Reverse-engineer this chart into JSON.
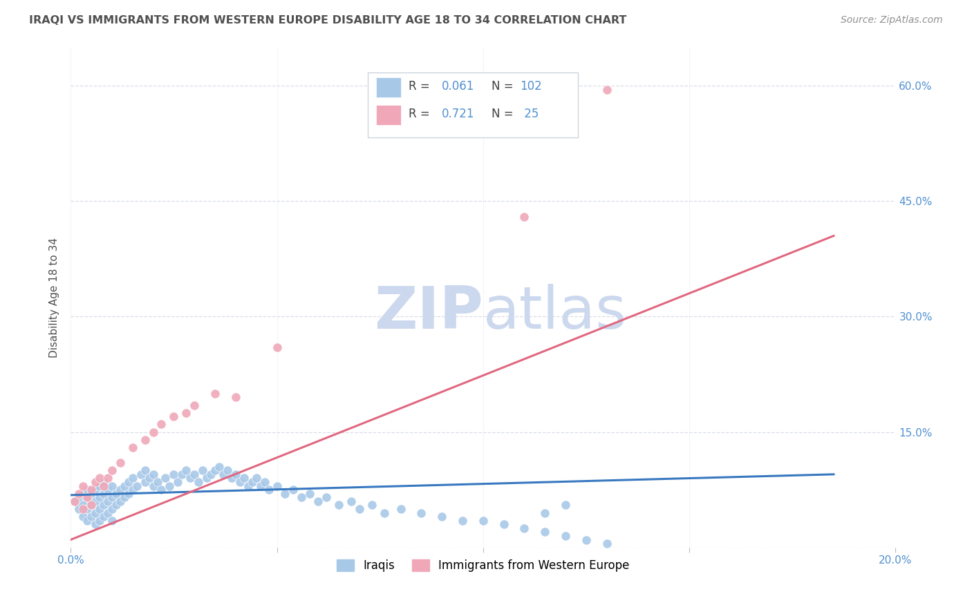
{
  "title": "IRAQI VS IMMIGRANTS FROM WESTERN EUROPE DISABILITY AGE 18 TO 34 CORRELATION CHART",
  "source": "Source: ZipAtlas.com",
  "ylabel": "Disability Age 18 to 34",
  "xlim": [
    0.0,
    0.2
  ],
  "ylim": [
    0.0,
    0.65
  ],
  "yticks": [
    0.0,
    0.15,
    0.3,
    0.45,
    0.6
  ],
  "xticks": [
    0.0,
    0.05,
    0.1,
    0.15,
    0.2
  ],
  "blue_R": "0.061",
  "blue_N": "102",
  "pink_R": "0.721",
  "pink_N": " 25",
  "blue_color": "#a8c8e8",
  "pink_color": "#f0a8b8",
  "blue_line_color": "#3878c0",
  "pink_line_color": "#e06880",
  "tick_color": "#5090d0",
  "title_color": "#505050",
  "source_color": "#909090",
  "watermark_color": "#ccd8ee",
  "grid_color": "#d8dde8",
  "legend_edge_color": "#c8d0dc",
  "blue_scatter_x": [
    0.001,
    0.002,
    0.002,
    0.003,
    0.003,
    0.003,
    0.004,
    0.004,
    0.004,
    0.004,
    0.005,
    0.005,
    0.005,
    0.006,
    0.006,
    0.006,
    0.006,
    0.007,
    0.007,
    0.007,
    0.007,
    0.008,
    0.008,
    0.008,
    0.008,
    0.009,
    0.009,
    0.009,
    0.01,
    0.01,
    0.01,
    0.01,
    0.011,
    0.011,
    0.012,
    0.012,
    0.013,
    0.013,
    0.014,
    0.014,
    0.015,
    0.015,
    0.016,
    0.017,
    0.018,
    0.018,
    0.019,
    0.02,
    0.02,
    0.021,
    0.022,
    0.023,
    0.024,
    0.025,
    0.026,
    0.027,
    0.028,
    0.029,
    0.03,
    0.031,
    0.032,
    0.033,
    0.034,
    0.035,
    0.036,
    0.037,
    0.038,
    0.039,
    0.04,
    0.041,
    0.042,
    0.043,
    0.044,
    0.045,
    0.046,
    0.047,
    0.048,
    0.05,
    0.052,
    0.054,
    0.056,
    0.058,
    0.06,
    0.062,
    0.065,
    0.068,
    0.07,
    0.073,
    0.076,
    0.08,
    0.085,
    0.09,
    0.095,
    0.1,
    0.105,
    0.11,
    0.115,
    0.12,
    0.125,
    0.13,
    0.115,
    0.12
  ],
  "blue_scatter_y": [
    0.06,
    0.05,
    0.065,
    0.04,
    0.055,
    0.07,
    0.035,
    0.05,
    0.065,
    0.075,
    0.04,
    0.055,
    0.07,
    0.03,
    0.045,
    0.06,
    0.075,
    0.035,
    0.05,
    0.065,
    0.08,
    0.04,
    0.055,
    0.07,
    0.085,
    0.045,
    0.06,
    0.075,
    0.035,
    0.05,
    0.065,
    0.08,
    0.055,
    0.07,
    0.06,
    0.075,
    0.065,
    0.08,
    0.07,
    0.085,
    0.075,
    0.09,
    0.08,
    0.095,
    0.085,
    0.1,
    0.09,
    0.08,
    0.095,
    0.085,
    0.075,
    0.09,
    0.08,
    0.095,
    0.085,
    0.095,
    0.1,
    0.09,
    0.095,
    0.085,
    0.1,
    0.09,
    0.095,
    0.1,
    0.105,
    0.095,
    0.1,
    0.09,
    0.095,
    0.085,
    0.09,
    0.08,
    0.085,
    0.09,
    0.08,
    0.085,
    0.075,
    0.08,
    0.07,
    0.075,
    0.065,
    0.07,
    0.06,
    0.065,
    0.055,
    0.06,
    0.05,
    0.055,
    0.045,
    0.05,
    0.045,
    0.04,
    0.035,
    0.035,
    0.03,
    0.025,
    0.02,
    0.015,
    0.01,
    0.005,
    0.045,
    0.055
  ],
  "pink_scatter_x": [
    0.001,
    0.002,
    0.003,
    0.003,
    0.004,
    0.005,
    0.005,
    0.006,
    0.007,
    0.008,
    0.009,
    0.01,
    0.012,
    0.015,
    0.018,
    0.02,
    0.022,
    0.025,
    0.028,
    0.03,
    0.035,
    0.04,
    0.05,
    0.11,
    0.13
  ],
  "pink_scatter_y": [
    0.06,
    0.07,
    0.05,
    0.08,
    0.065,
    0.055,
    0.075,
    0.085,
    0.09,
    0.08,
    0.09,
    0.1,
    0.11,
    0.13,
    0.14,
    0.15,
    0.16,
    0.17,
    0.175,
    0.185,
    0.2,
    0.195,
    0.26,
    0.43,
    0.595
  ],
  "blue_line_x": [
    0.0,
    0.185
  ],
  "blue_line_y": [
    0.068,
    0.095
  ],
  "pink_line_x": [
    0.0,
    0.185
  ],
  "pink_line_y": [
    0.01,
    0.405
  ]
}
